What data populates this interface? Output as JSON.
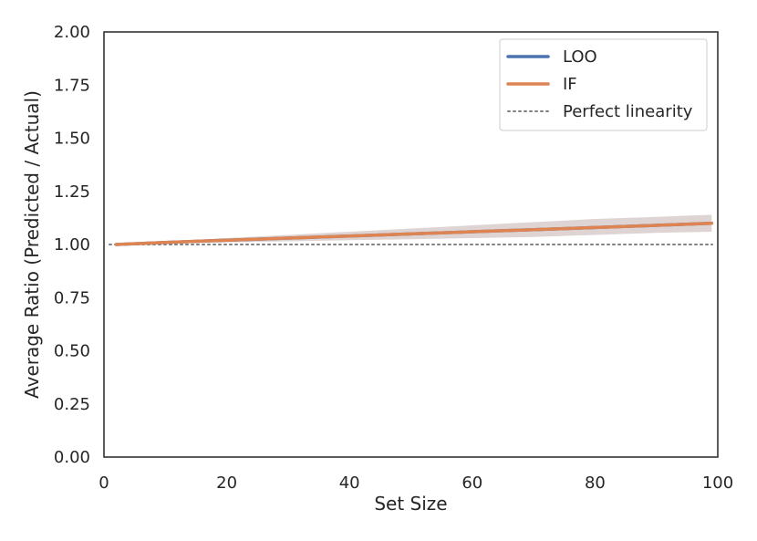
{
  "chart_data": {
    "type": "line",
    "title": "",
    "xlabel": "Set Size",
    "ylabel": "Average Ratio (Predicted / Actual)",
    "xlim": [
      0,
      100
    ],
    "ylim": [
      0,
      2.0
    ],
    "xticks": [
      0,
      20,
      40,
      60,
      80,
      100
    ],
    "xtick_labels": [
      "0",
      "20",
      "40",
      "60",
      "80",
      "100"
    ],
    "yticks": [
      0,
      0.25,
      0.5,
      0.75,
      1.0,
      1.25,
      1.5,
      1.75,
      2.0
    ],
    "ytick_labels": [
      "0.00",
      "0.25",
      "0.50",
      "0.75",
      "1.00",
      "1.25",
      "1.50",
      "1.75",
      "2.00"
    ],
    "grid": false,
    "legend_position": "top-right",
    "x": [
      2,
      10,
      20,
      30,
      40,
      50,
      60,
      70,
      80,
      90,
      99
    ],
    "series": [
      {
        "name": "LOO",
        "color": "#4c72b0",
        "values": [
          1.0,
          1.01,
          1.02,
          1.03,
          1.04,
          1.05,
          1.06,
          1.07,
          1.08,
          1.09,
          1.1
        ],
        "band_lower": [
          1.0,
          1.005,
          1.01,
          1.015,
          1.02,
          1.025,
          1.03,
          1.035,
          1.045,
          1.055,
          1.06
        ],
        "band_upper": [
          1.0,
          1.015,
          1.03,
          1.045,
          1.06,
          1.075,
          1.09,
          1.105,
          1.12,
          1.13,
          1.14
        ]
      },
      {
        "name": "IF",
        "color": "#dd8452",
        "values": [
          1.0,
          1.01,
          1.02,
          1.03,
          1.04,
          1.05,
          1.06,
          1.07,
          1.08,
          1.09,
          1.1
        ],
        "band_lower": [
          1.0,
          1.005,
          1.01,
          1.015,
          1.02,
          1.025,
          1.03,
          1.035,
          1.045,
          1.055,
          1.06
        ],
        "band_upper": [
          1.0,
          1.015,
          1.03,
          1.045,
          1.06,
          1.075,
          1.09,
          1.105,
          1.12,
          1.13,
          1.14
        ]
      }
    ],
    "reference_line": {
      "name": "Perfect linearity",
      "y": 1.0,
      "color": "#808080",
      "style": "dotted"
    }
  }
}
